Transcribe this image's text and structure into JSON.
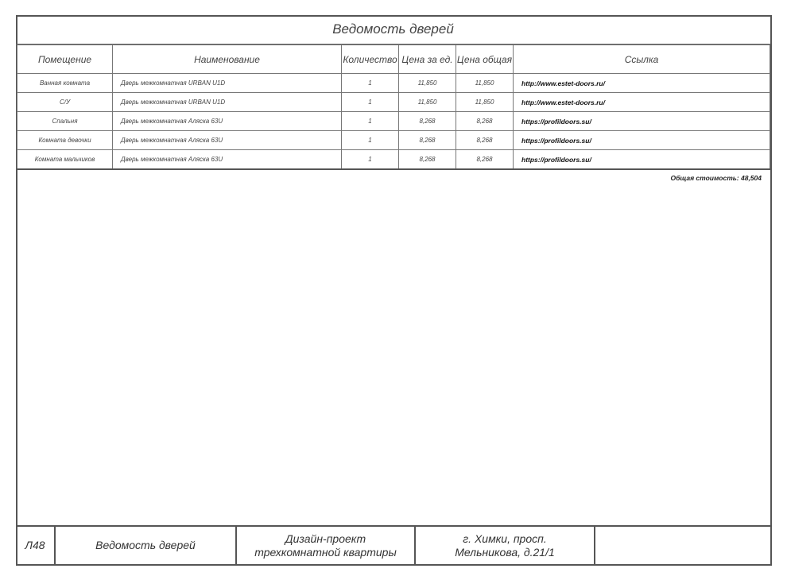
{
  "title": "Ведомость дверей",
  "headers": [
    "Помещение",
    "Наименование",
    "Количество",
    "Цена за ед.",
    "Цена общая",
    "Ссылка"
  ],
  "rows": [
    {
      "room": "Ванная комната",
      "name": "Дверь межкомнатная URBAN U1D",
      "qty": "1",
      "unit_price": "11,850",
      "total_price": "11,850",
      "link": "http://www.estet-doors.ru/"
    },
    {
      "room": "С/У",
      "name": "Дверь межкомнатная URBAN U1D",
      "qty": "1",
      "unit_price": "11,850",
      "total_price": "11,850",
      "link": "http://www.estet-doors.ru/"
    },
    {
      "room": "Спальня",
      "name": "Дверь межкомнатная Аляска 63U",
      "qty": "1",
      "unit_price": "8,268",
      "total_price": "8,268",
      "link": "https://profildoors.su/"
    },
    {
      "room": "Комната девочки",
      "name": "Дверь межкомнатная Аляска 63U",
      "qty": "1",
      "unit_price": "8,268",
      "total_price": "8,268",
      "link": "https://profildoors.su/"
    },
    {
      "room": "Комната мальчиков",
      "name": "Дверь межкомнатная Аляска 63U",
      "qty": "1",
      "unit_price": "8,268",
      "total_price": "8,268",
      "link": "https://profildoors.su/"
    }
  ],
  "total": "Общая стоимость: 48,504",
  "footer": {
    "sheet": "Л48",
    "sheet_title": "Ведомость дверей",
    "project": "Дизайн-проект трехкомнатной квартиры",
    "address": "г. Химки, просп. Мельникова, д.21/1",
    "extra": ""
  }
}
